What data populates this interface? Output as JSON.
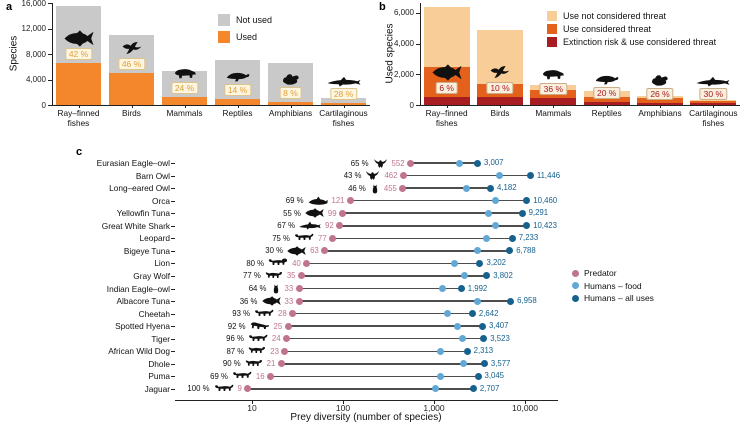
{
  "chart_data": [
    {
      "id": "a",
      "panel_label": "a",
      "type": "bar",
      "stacked": true,
      "ylabel": "Species",
      "ylim": [
        0,
        16000
      ],
      "yticks": [
        0,
        4000,
        8000,
        12000,
        16000
      ],
      "ytick_labels": [
        "0",
        "4,000",
        "8,000",
        "12,000",
        "16,000"
      ],
      "categories": [
        "Ray–finned fishes",
        "Birds",
        "Mammals",
        "Reptiles",
        "Amphibians",
        "Cartilaginous fishes"
      ],
      "category_label_lines": [
        [
          "Ray–finned",
          "fishes"
        ],
        [
          "Birds"
        ],
        [
          "Mammals"
        ],
        [
          "Reptiles"
        ],
        [
          "Amphibians"
        ],
        [
          "Cartilaginous",
          "fishes"
        ]
      ],
      "icons": [
        "tuna",
        "bird",
        "boar",
        "chameleon",
        "frog",
        "shark"
      ],
      "totals": [
        15600,
        11100,
        5400,
        7100,
        6600,
        1100
      ],
      "series": [
        {
          "name": "Used",
          "color": "#F4862C",
          "values": [
            6550,
            5100,
            1300,
            990,
            530,
            310
          ]
        },
        {
          "name": "Not used",
          "color": "#C9C9C9",
          "values": [
            9050,
            6000,
            4100,
            6110,
            6070,
            790
          ]
        }
      ],
      "pct_labels": [
        "42 %",
        "46 %",
        "24 %",
        "14 %",
        "8 %",
        "28 %"
      ],
      "legend": [
        {
          "label": "Not used",
          "color": "#C9C9C9"
        },
        {
          "label": "Used",
          "color": "#F4862C"
        }
      ],
      "pct_label_style": {
        "text": "#E2A13C",
        "bg": "#FCF5E0",
        "border": "#DEC38A"
      }
    },
    {
      "id": "b",
      "panel_label": "b",
      "type": "bar",
      "stacked": true,
      "ylabel": "Used species",
      "ylim": [
        0,
        6650
      ],
      "yticks": [
        0,
        2000,
        4000,
        6000
      ],
      "ytick_labels": [
        "0",
        "2,000",
        "4,000",
        "6,000"
      ],
      "categories": [
        "Ray–finned fishes",
        "Birds",
        "Mammals",
        "Reptiles",
        "Amphibians",
        "Cartilaginous fishes"
      ],
      "category_label_lines": [
        [
          "Ray–finned",
          "fishes"
        ],
        [
          "Birds"
        ],
        [
          "Mammals"
        ],
        [
          "Reptiles"
        ],
        [
          "Amphibians"
        ],
        [
          "Cartilaginous",
          "fishes"
        ]
      ],
      "icons": [
        "tuna",
        "bird",
        "boar",
        "chameleon",
        "frog",
        "shark"
      ],
      "totals": [
        6400,
        4900,
        1300,
        900,
        600,
        320
      ],
      "series": [
        {
          "name": "Extinction risk & use considered threat",
          "color": "#A81D22",
          "values": [
            500,
            540,
            450,
            180,
            160,
            100
          ]
        },
        {
          "name": "Use considered threat",
          "color": "#E3611B",
          "values": [
            2000,
            810,
            500,
            320,
            270,
            130
          ]
        },
        {
          "name": "Use not considered threat",
          "color": "#F9CD97",
          "values": [
            3900,
            3550,
            350,
            400,
            170,
            90
          ]
        }
      ],
      "pct_labels": [
        "6 %",
        "10 %",
        "36 %",
        "20 %",
        "26 %",
        "30 %"
      ],
      "legend": [
        {
          "label": "Use not considered threat",
          "color": "#F9CD97"
        },
        {
          "label": "Use considered threat",
          "color": "#E3611B"
        },
        {
          "label": "Extinction risk & use considered threat",
          "color": "#A81D22"
        }
      ],
      "pct_label_style": {
        "text": "#A81D22",
        "bg": "#FAEEDD",
        "border": "#CBAE88"
      }
    },
    {
      "id": "c",
      "panel_label": "c",
      "type": "dumbbell",
      "xscale": "log",
      "xlabel": "Prey diversity (number of species)",
      "xlim": [
        5,
        30000
      ],
      "xticks": [
        10,
        100,
        1000,
        10000
      ],
      "xtick_labels": [
        "10",
        "100",
        "1,000",
        "10,000"
      ],
      "legend": [
        {
          "label": "Predator",
          "color": "#C0748F"
        },
        {
          "label": "Humans – food",
          "color": "#61A8D4"
        },
        {
          "label": "Humans – all uses",
          "color": "#16618E"
        }
      ],
      "rows": [
        {
          "species": "Eurasian Eagle–owl",
          "pct_label": "65 %",
          "icon": "owlflying",
          "predator": 552,
          "humans_food_est": 1900,
          "humans_all": 3007
        },
        {
          "species": "Barn Owl",
          "pct_label": "43 %",
          "icon": "owlflying",
          "predator": 462,
          "humans_food_est": 5200,
          "humans_all": 11446
        },
        {
          "species": "Long–eared Owl",
          "pct_label": "46 %",
          "icon": "owl",
          "predator": 455,
          "humans_food_est": 2250,
          "humans_all": 4182
        },
        {
          "species": "Orca",
          "pct_label": "69 %",
          "icon": "orca",
          "predator": 121,
          "humans_food_est": 4800,
          "humans_all": 10460
        },
        {
          "species": "Yellowfin Tuna",
          "pct_label": "55 %",
          "icon": "tuna",
          "predator": 99,
          "humans_food_est": 4000,
          "humans_all": 9291
        },
        {
          "species": "Great White Shark",
          "pct_label": "67 %",
          "icon": "shark",
          "predator": 92,
          "humans_food_est": 4700,
          "humans_all": 10423
        },
        {
          "species": "Leopard",
          "pct_label": "75 %",
          "icon": "felid",
          "predator": 77,
          "humans_food_est": 3800,
          "humans_all": 7233
        },
        {
          "species": "Bigeye Tuna",
          "pct_label": "30 %",
          "icon": "tuna",
          "predator": 63,
          "humans_food_est": 3000,
          "humans_all": 6788
        },
        {
          "species": "Lion",
          "pct_label": "80 %",
          "icon": "lion",
          "predator": 40,
          "humans_food_est": 1700,
          "humans_all": 3202
        },
        {
          "species": "Gray Wolf",
          "pct_label": "77 %",
          "icon": "canid",
          "predator": 35,
          "humans_food_est": 2150,
          "humans_all": 3802
        },
        {
          "species": "Indian Eagle–owl",
          "pct_label": "64 %",
          "icon": "owl",
          "predator": 33,
          "humans_food_est": 1230,
          "humans_all": 1992
        },
        {
          "species": "Albacore Tuna",
          "pct_label": "36 %",
          "icon": "tuna",
          "predator": 33,
          "humans_food_est": 3030,
          "humans_all": 6958
        },
        {
          "species": "Cheetah",
          "pct_label": "93 %",
          "icon": "felid",
          "predator": 28,
          "humans_food_est": 1400,
          "humans_all": 2642
        },
        {
          "species": "Spotted Hyena",
          "pct_label": "92 %",
          "icon": "hyena",
          "predator": 25,
          "humans_food_est": 1790,
          "humans_all": 3407
        },
        {
          "species": "Tiger",
          "pct_label": "96 %",
          "icon": "felid",
          "predator": 24,
          "humans_food_est": 2040,
          "humans_all": 3523
        },
        {
          "species": "African Wild Dog",
          "pct_label": "87 %",
          "icon": "canid",
          "predator": 23,
          "humans_food_est": 1170,
          "humans_all": 2313
        },
        {
          "species": "Dhole",
          "pct_label": "90 %",
          "icon": "canid",
          "predator": 21,
          "humans_food_est": 2090,
          "humans_all": 3577
        },
        {
          "species": "Puma",
          "pct_label": "69 %",
          "icon": "felid",
          "predator": 16,
          "humans_food_est": 1170,
          "humans_all": 3045
        },
        {
          "species": "Jaguar",
          "pct_label": "100 %",
          "icon": "felid",
          "predator": 9,
          "humans_food_est": 1030,
          "humans_all": 2707
        }
      ]
    }
  ]
}
